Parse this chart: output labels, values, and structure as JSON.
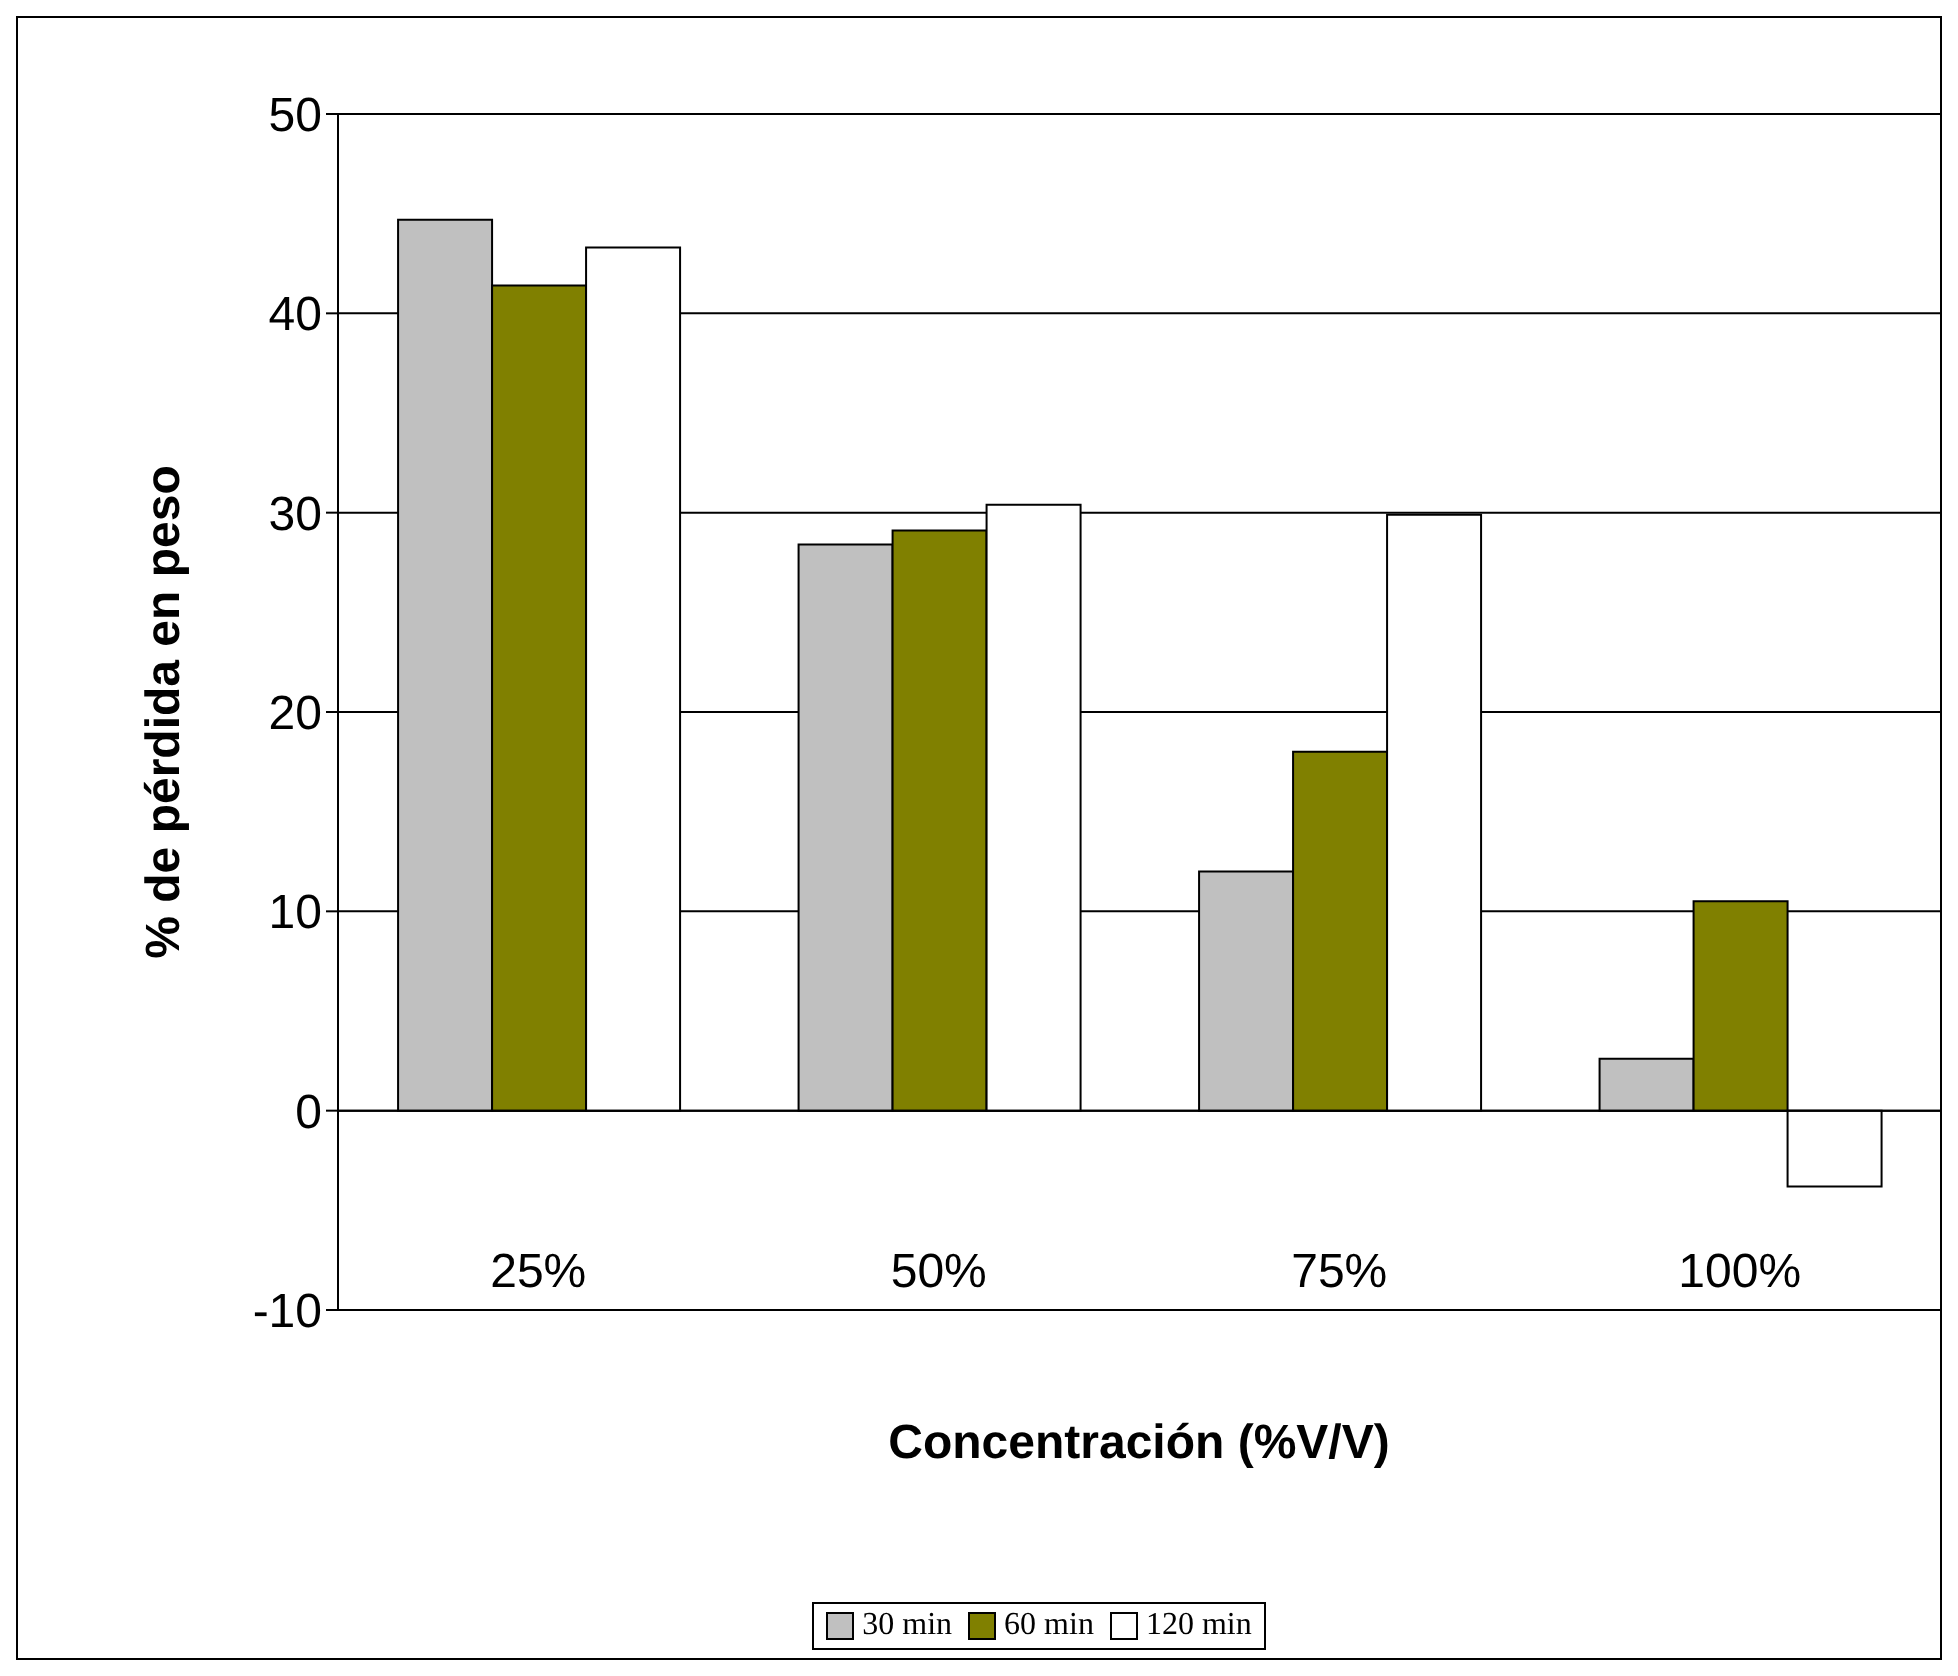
{
  "chart_data": {
    "type": "bar",
    "xlabel": "Concentración (%V/V)",
    "ylabel": "% de pérdida en peso",
    "categories": [
      "25%",
      "50%",
      "75%",
      "100%"
    ],
    "series": [
      {
        "name": "30 min",
        "color": "#c0c0c0",
        "values": [
          44.7,
          28.4,
          12.0,
          2.6
        ]
      },
      {
        "name": "60 min",
        "color": "#808000",
        "values": [
          41.4,
          29.1,
          18.0,
          10.5
        ]
      },
      {
        "name": "120 min",
        "color": "#ffffff",
        "values": [
          43.3,
          30.4,
          29.9,
          -3.8
        ]
      }
    ],
    "ylim": [
      -10,
      50
    ],
    "yticks": [
      -10,
      0,
      10,
      20,
      30,
      40,
      50
    ],
    "grid": "y",
    "legend": "bottom"
  }
}
